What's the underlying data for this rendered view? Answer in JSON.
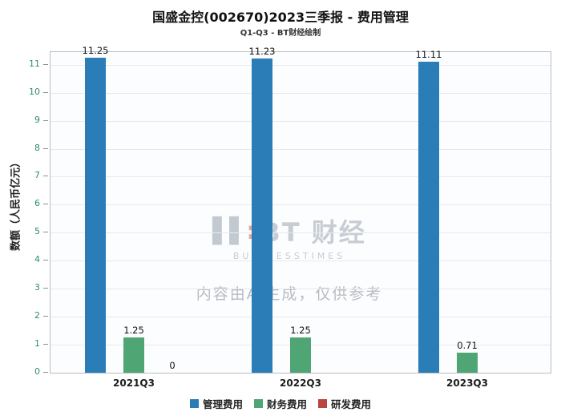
{
  "header": {
    "title": "国盛金控(002670)2023三季报 - 费用管理",
    "subtitle": "Q1-Q3 - BT财经绘制"
  },
  "watermark": {
    "logo_glyph": "▌▌",
    "logo_text": "BT 财经",
    "logo_subtext": "BUSINESSTIMES",
    "disclaimer": "内容由AI生成，仅供参考"
  },
  "chart_data": {
    "type": "bar",
    "title": "国盛金控(002670)2023三季报 - 费用管理",
    "subtitle": "Q1-Q3 - BT财经绘制",
    "xlabel": "",
    "ylabel": "数额（人民币亿元）",
    "categories": [
      "2021Q3",
      "2022Q3",
      "2023Q3"
    ],
    "series": [
      {
        "name": "管理费用",
        "color": "#2b7db8",
        "values": [
          11.25,
          11.23,
          11.11
        ]
      },
      {
        "name": "财务费用",
        "color": "#4fa573",
        "values": [
          1.25,
          1.25,
          0.71
        ]
      },
      {
        "name": "研发费用",
        "color": "#bb4440",
        "values": [
          0,
          null,
          null
        ]
      }
    ],
    "value_labels": [
      [
        "11.25",
        "1.25",
        "0"
      ],
      [
        "11.23",
        "1.25",
        null
      ],
      [
        "11.11",
        "0.71",
        null
      ]
    ],
    "ylim": [
      0,
      11.45
    ],
    "yticks": [
      0,
      1,
      2,
      3,
      4,
      5,
      6,
      7,
      8,
      9,
      10,
      11
    ],
    "grid": true,
    "legend_position": "bottom"
  },
  "legend": {
    "items": [
      {
        "label": "管理费用",
        "color": "#2b7db8"
      },
      {
        "label": "财务费用",
        "color": "#4fa573"
      },
      {
        "label": "研发费用",
        "color": "#bb4440"
      }
    ]
  }
}
